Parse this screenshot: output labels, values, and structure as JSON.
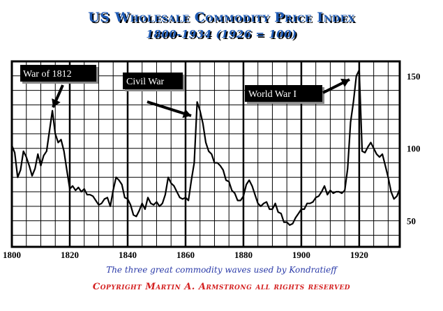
{
  "title": "US Wholesale Commodity Price Index",
  "subtitle": "1800-1934  (1926 = 100)",
  "caption": "The three great commodity waves used by Kondratieff",
  "copyright": "Copyright Martin A. Armstrong all rights reserved",
  "colors": {
    "title": "#1e5ab4",
    "caption": "#2a3aa8",
    "copyright": "#d42020",
    "line": "#000000",
    "label_bg": "#000000",
    "label_text": "#ffffff"
  },
  "chart_data": {
    "type": "line",
    "title": "US Wholesale Commodity Price Index",
    "xlim": [
      1800,
      1934
    ],
    "ylim": [
      32,
      160
    ],
    "x_ticks": [
      1800,
      1820,
      1840,
      1860,
      1880,
      1900,
      1920
    ],
    "y_ticks": [
      50,
      100,
      150
    ],
    "grid": true,
    "y_axis_side": "right",
    "annotations": [
      {
        "text": "War of 1812",
        "x": 1813,
        "y": 124
      },
      {
        "text": "Civil War",
        "x": 1864,
        "y": 122
      },
      {
        "text": "World War I",
        "x": 1919,
        "y": 143
      }
    ],
    "series": [
      {
        "x": [
          1800,
          1801,
          1802,
          1803,
          1804,
          1805,
          1806,
          1807,
          1808,
          1809,
          1810,
          1811,
          1812,
          1813,
          1814,
          1815,
          1816,
          1817,
          1818,
          1819,
          1820,
          1821,
          1822,
          1823,
          1824,
          1825,
          1826,
          1827,
          1828,
          1829,
          1830,
          1831,
          1832,
          1833,
          1834,
          1835,
          1836,
          1837,
          1838,
          1839,
          1840,
          1841,
          1842,
          1843,
          1844,
          1845,
          1846,
          1847,
          1848,
          1849,
          1850,
          1851,
          1852,
          1853,
          1854,
          1855,
          1856,
          1857,
          1858,
          1859,
          1860,
          1861,
          1862,
          1863,
          1864,
          1865,
          1866,
          1867,
          1868,
          1869,
          1870,
          1871,
          1872,
          1873,
          1874,
          1875,
          1876,
          1877,
          1878,
          1879,
          1880,
          1881,
          1882,
          1883,
          1884,
          1885,
          1886,
          1887,
          1888,
          1889,
          1890,
          1891,
          1892,
          1893,
          1894,
          1895,
          1896,
          1897,
          1898,
          1899,
          1900,
          1901,
          1902,
          1903,
          1904,
          1905,
          1906,
          1907,
          1908,
          1909,
          1910,
          1911,
          1912,
          1913,
          1914,
          1915,
          1916,
          1917,
          1918,
          1919,
          1920,
          1921,
          1922,
          1923,
          1924,
          1925,
          1926,
          1927,
          1928,
          1929,
          1930,
          1931,
          1932,
          1933,
          1934
        ],
        "values": [
          102,
          97,
          80,
          85,
          98,
          94,
          88,
          81,
          86,
          96,
          88,
          95,
          98,
          112,
          126,
          110,
          104,
          106,
          98,
          85,
          72,
          74,
          71,
          73,
          70,
          72,
          68,
          68,
          67,
          64,
          61,
          62,
          65,
          66,
          60,
          71,
          80,
          78,
          75,
          66,
          65,
          61,
          54,
          53,
          57,
          62,
          58,
          66,
          62,
          61,
          63,
          60,
          62,
          68,
          80,
          76,
          74,
          70,
          66,
          65,
          66,
          64,
          78,
          90,
          132,
          126,
          117,
          104,
          98,
          96,
          90,
          90,
          88,
          85,
          78,
          77,
          71,
          69,
          64,
          64,
          67,
          75,
          78,
          74,
          68,
          62,
          60,
          62,
          63,
          58,
          58,
          62,
          56,
          55,
          49,
          49,
          47,
          48,
          52,
          55,
          58,
          58,
          62,
          62,
          63,
          66,
          67,
          70,
          74,
          68,
          71,
          69,
          70,
          70,
          69,
          71,
          86,
          118,
          132,
          150,
          154,
          98,
          97,
          101,
          104,
          100,
          96,
          94,
          96,
          88,
          80,
          70,
          65,
          67,
          72
        ]
      }
    ]
  }
}
